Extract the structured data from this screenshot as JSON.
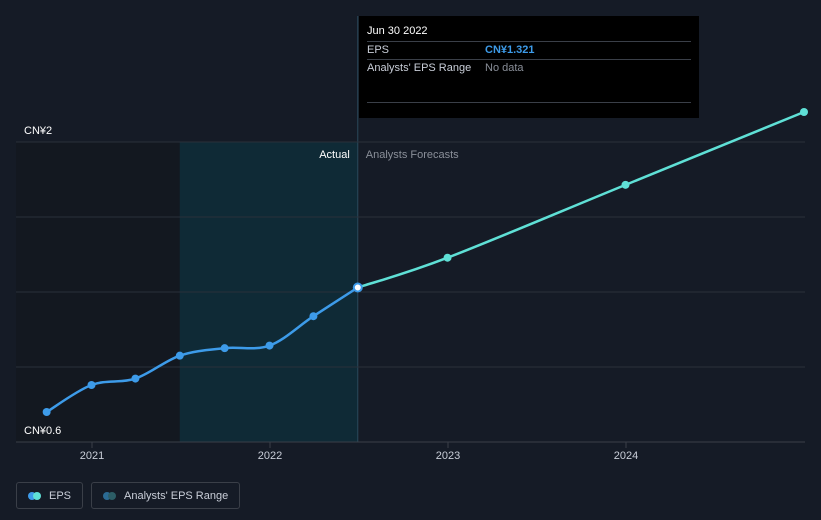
{
  "chart_data": {
    "type": "line",
    "y_axis": {
      "top_label": "CN¥2",
      "bottom_label": "CN¥0.6",
      "ylim": [
        0.6,
        2.0
      ]
    },
    "x_axis": {
      "ticks": [
        "2021",
        "2022",
        "2023",
        "2024"
      ]
    },
    "regions": {
      "actual_label": "Actual",
      "forecast_label": "Analysts Forecasts"
    },
    "series": [
      {
        "name": "EPS",
        "color": "#3d9be9",
        "points": [
          {
            "x": "2020-09-30",
            "y": 0.74
          },
          {
            "x": "2020-12-31",
            "y": 0.866
          },
          {
            "x": "2021-03-31",
            "y": 0.896
          },
          {
            "x": "2021-06-30",
            "y": 1.003
          },
          {
            "x": "2021-09-30",
            "y": 1.038
          },
          {
            "x": "2021-12-31",
            "y": 1.05
          },
          {
            "x": "2022-03-31",
            "y": 1.187
          },
          {
            "x": "2022-06-30",
            "y": 1.321
          }
        ]
      },
      {
        "name": "Analysts Forecasts",
        "color": "#5fe0d6",
        "points": [
          {
            "x": "2022-06-30",
            "y": 1.321
          },
          {
            "x": "2022-12-31",
            "y": 1.46
          },
          {
            "x": "2023-12-31",
            "y": 1.8
          },
          {
            "x": "2024-12-31",
            "y": 2.14
          }
        ]
      }
    ]
  },
  "tooltip": {
    "date": "Jun 30 2022",
    "eps_label": "EPS",
    "eps_value": "CN¥1.321",
    "range_label": "Analysts' EPS Range",
    "range_value": "No data"
  },
  "legend": {
    "eps_label": "EPS",
    "range_label": "Analysts' EPS Range"
  }
}
